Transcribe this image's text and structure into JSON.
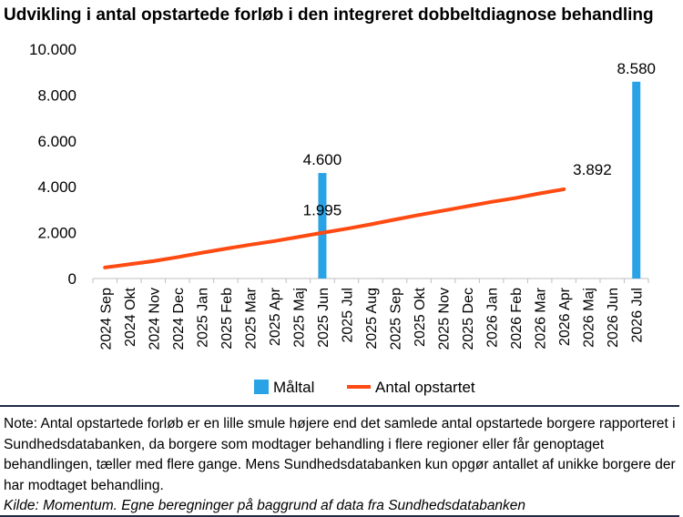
{
  "title": "Udvikling i antal opstartede forløb i den integreret dobbeltdiagnose behandling",
  "chart_data": {
    "type": "bar+line",
    "categories": [
      "2024 Sep",
      "2024 Okt",
      "2024 Nov",
      "2024 Dec",
      "2025 Jan",
      "2025 Feb",
      "2025 Mar",
      "2025 Apr",
      "2025 Maj",
      "2025 Jun",
      "2025 Jul",
      "2025 Aug",
      "2025 Sep",
      "2025 Okt",
      "2025 Nov",
      "2025 Dec",
      "2026 Jan",
      "2026 Feb",
      "2026 Mar",
      "2026 Apr",
      "2026 Maj",
      "2026 Jun",
      "2026 Jul"
    ],
    "ylim": [
      0,
      10000
    ],
    "yticks": [
      "0",
      "2.000",
      "4.000",
      "6.000",
      "8.000",
      "10.000"
    ],
    "grid": false,
    "legend_position": "bottom",
    "series": [
      {
        "name": "Måltal",
        "type": "bar",
        "color": "#29a3e6",
        "values": [
          null,
          null,
          null,
          null,
          null,
          null,
          null,
          null,
          null,
          4600,
          null,
          null,
          null,
          null,
          null,
          null,
          null,
          null,
          null,
          null,
          null,
          null,
          8580
        ],
        "data_labels": {
          "9": "4.600",
          "22": "8.580"
        }
      },
      {
        "name": "Antal opstartet",
        "type": "line",
        "color": "#ff4a12",
        "values": [
          480,
          620,
          760,
          930,
          1120,
          1300,
          1470,
          1630,
          1810,
          1995,
          2170,
          2360,
          2570,
          2770,
          2960,
          3150,
          3340,
          3510,
          3710,
          3892,
          null,
          null,
          null
        ],
        "data_labels": {
          "9": "1.995",
          "19": "3.892"
        }
      }
    ]
  },
  "notes": {
    "note": "Note: Antal opstartede forløb er en lille smule højere end det samlede antal opstartede borgere rapporteret i Sundhedsdatabanken, da borgere som modtager behandling i flere regioner eller får genoptaget behandlingen, tæller med flere gange. Mens Sundhedsdatabanken kun opgør antallet af unikke borgere der har modtaget behandling.",
    "source": "Kilde: Momentum. Egne beregninger på baggrund af data fra Sundhedsdatabanken"
  }
}
